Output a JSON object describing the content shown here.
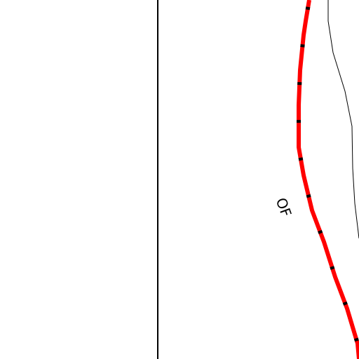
{
  "map": {
    "labels": [
      {
        "text": "OF"
      }
    ]
  }
}
